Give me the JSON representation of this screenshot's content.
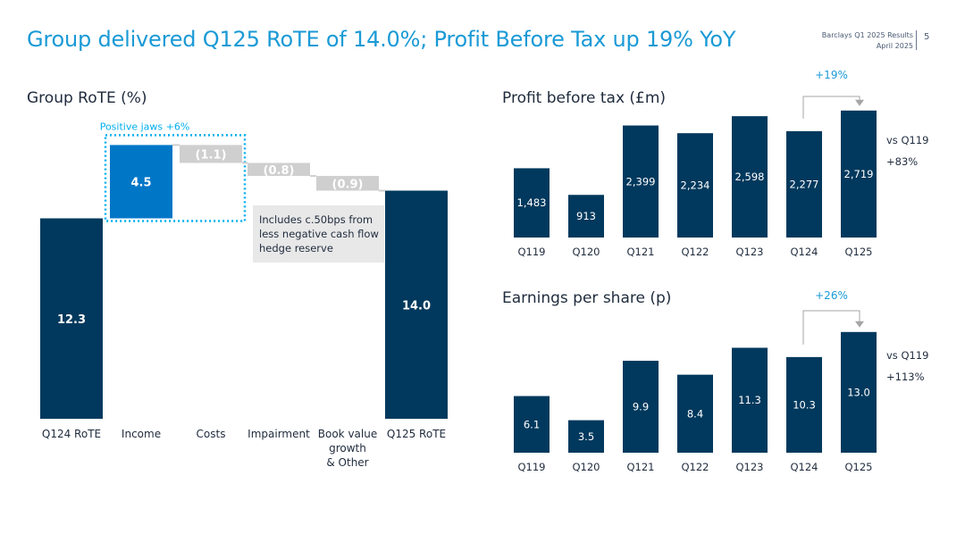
{
  "header": {
    "title": "Group delivered Q125 RoTE of 14.0%; Profit Before Tax up 19% YoY",
    "company_line": "Barclays Q1 2025 Results",
    "date_line": "April 2025",
    "page_number": "5"
  },
  "chart_data": [
    {
      "type": "bar",
      "subtype": "waterfall",
      "title": "Group RoTE (%)",
      "categories": [
        "Q124 RoTE",
        "Income",
        "Costs",
        "Impairment",
        "Book value growth & Other",
        "Q125 RoTE"
      ],
      "category_lines": [
        [
          "Q124 RoTE"
        ],
        [
          "Income"
        ],
        [
          "Costs"
        ],
        [
          "Impairment"
        ],
        [
          "Book value",
          "growth",
          "& Other"
        ],
        [
          "Q125 RoTE"
        ]
      ],
      "values": [
        12.3,
        4.5,
        -1.1,
        -0.8,
        -0.9,
        14.0
      ],
      "labels": [
        "12.3",
        "4.5",
        "(1.1)",
        "(0.8)",
        "(0.9)",
        "14.0"
      ],
      "measures": [
        "total",
        "relative",
        "relative",
        "relative",
        "relative",
        "total"
      ],
      "annotations": {
        "jaws": "Positive jaws +6%",
        "note_lines": [
          "Includes c.50bps from",
          "less negative cash flow",
          "hedge reserve"
        ]
      },
      "colors": {
        "total": "#00395d",
        "increase": "#0076c7",
        "decrease": "#cfcfcf",
        "jaws": "#00aeef"
      }
    },
    {
      "type": "bar",
      "title": "Profit before tax (£m)",
      "categories": [
        "Q119",
        "Q120",
        "Q121",
        "Q122",
        "Q123",
        "Q124",
        "Q125"
      ],
      "values": [
        1483,
        913,
        2399,
        2234,
        2598,
        2277,
        2719
      ],
      "labels": [
        "1,483",
        "913",
        "2,399",
        "2,234",
        "2,598",
        "2,277",
        "2,719"
      ],
      "growth_annotation": "+19%",
      "side_note": [
        "vs Q119",
        "+83%"
      ],
      "color": "#00395d"
    },
    {
      "type": "bar",
      "title": "Earnings per share (p)",
      "categories": [
        "Q119",
        "Q120",
        "Q121",
        "Q122",
        "Q123",
        "Q124",
        "Q125"
      ],
      "values": [
        6.1,
        3.5,
        9.9,
        8.4,
        11.3,
        10.3,
        13.0
      ],
      "labels": [
        "6.1",
        "3.5",
        "9.9",
        "8.4",
        "11.3",
        "10.3",
        "13.0"
      ],
      "growth_annotation": "+26%",
      "side_note": [
        "vs Q119",
        "+113%"
      ],
      "color": "#00395d"
    }
  ]
}
